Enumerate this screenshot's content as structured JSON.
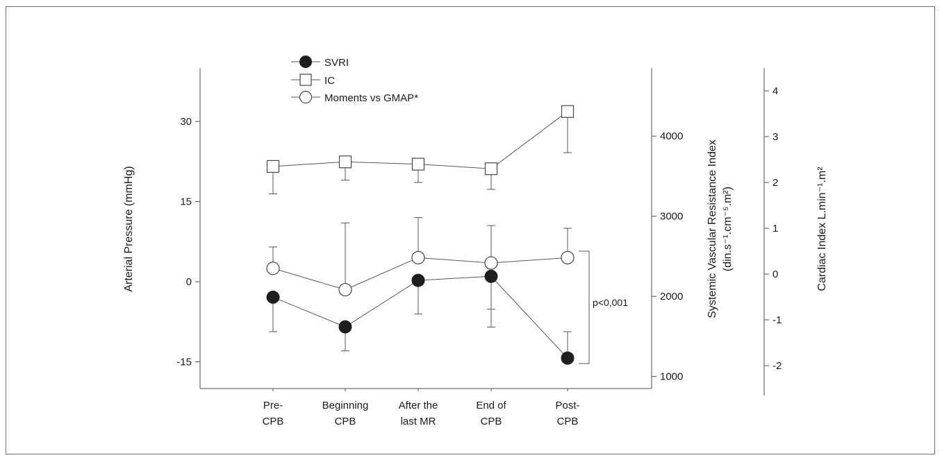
{
  "chart_data": {
    "type": "line",
    "categories": [
      [
        "Pre-",
        "CPB"
      ],
      [
        "Beginning",
        "CPB"
      ],
      [
        "After the",
        "last MR"
      ],
      [
        "End of",
        "CPB"
      ],
      [
        "Post-",
        "CPB"
      ]
    ],
    "axes": {
      "left": {
        "label": "Arterial Pressure (mmHg)",
        "range": [
          -20,
          40
        ],
        "ticks": [
          -15,
          0,
          15,
          30
        ]
      },
      "right_svri": {
        "label_line1": "Systemic Vascular Resistance Index",
        "label_line2": "(din.s⁻¹.cm⁻⁵.m²)",
        "range": [
          850,
          4850
        ],
        "ticks": [
          1000,
          2000,
          3000,
          4000
        ]
      },
      "right_ci": {
        "label": "Cardiac Index L.min⁻¹.m²",
        "range": [
          -2.5,
          4.5
        ],
        "ticks": [
          -2,
          -1,
          0,
          1,
          2,
          3,
          4
        ]
      }
    },
    "series": [
      {
        "name": "SVRI",
        "axis": "right_svri",
        "marker": "filled-circle",
        "values": [
          1990,
          1620,
          2200,
          2250,
          1230
        ],
        "err_low": [
          1560,
          1320,
          1780,
          1840,
          1230
        ],
        "err_high": [
          1990,
          1620,
          2200,
          2250,
          1560
        ],
        "error_bar": "down"
      },
      {
        "name": "IC",
        "axis": "right_ci",
        "marker": "open-square",
        "values": [
          2.35,
          2.45,
          2.4,
          2.3,
          3.55
        ],
        "err_low": [
          1.75,
          2.05,
          2.0,
          1.85,
          2.65
        ],
        "err_high": [
          2.35,
          2.45,
          2.4,
          2.3,
          3.55
        ],
        "error_bar": "down"
      },
      {
        "name": "Moments vs GMAP*",
        "axis": "left",
        "marker": "open-circle",
        "values": [
          2.5,
          -1.5,
          4.5,
          3.5,
          4.5
        ],
        "err_low": [
          2.5,
          -1.5,
          4.5,
          -8.5,
          4.5
        ],
        "err_high": [
          6.5,
          11.0,
          12.0,
          10.5,
          10.0
        ],
        "error_bar": "up",
        "note": "End of CPB error bar spans both directions"
      }
    ],
    "annotations": [
      {
        "text": "p<0,001",
        "between_series": [
          "SVRI",
          "Moments vs GMAP*"
        ],
        "category": "Post-CPB"
      }
    ],
    "legend_position": "top-left",
    "grid": false
  }
}
